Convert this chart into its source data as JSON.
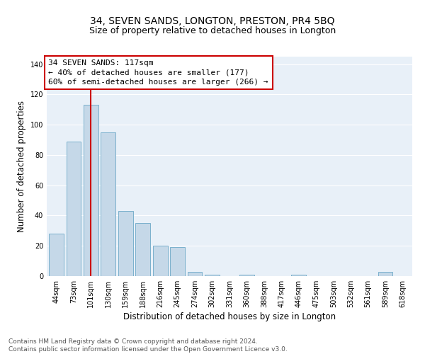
{
  "title": "34, SEVEN SANDS, LONGTON, PRESTON, PR4 5BQ",
  "subtitle": "Size of property relative to detached houses in Longton",
  "xlabel": "Distribution of detached houses by size in Longton",
  "ylabel": "Number of detached properties",
  "categories": [
    "44sqm",
    "73sqm",
    "101sqm",
    "130sqm",
    "159sqm",
    "188sqm",
    "216sqm",
    "245sqm",
    "274sqm",
    "302sqm",
    "331sqm",
    "360sqm",
    "388sqm",
    "417sqm",
    "446sqm",
    "475sqm",
    "503sqm",
    "532sqm",
    "561sqm",
    "589sqm",
    "618sqm"
  ],
  "values": [
    28,
    89,
    113,
    95,
    43,
    35,
    20,
    19,
    3,
    1,
    0,
    1,
    0,
    0,
    1,
    0,
    0,
    0,
    0,
    3,
    0
  ],
  "bar_color": "#c5d8e8",
  "bar_edge_color": "#7ab0cc",
  "vline_x": 2.0,
  "vline_color": "#cc0000",
  "annotation_text": "34 SEVEN SANDS: 117sqm\n← 40% of detached houses are smaller (177)\n60% of semi-detached houses are larger (266) →",
  "annotation_box_color": "#ffffff",
  "annotation_box_edge": "#cc0000",
  "ylim": [
    0,
    145
  ],
  "yticks": [
    0,
    20,
    40,
    60,
    80,
    100,
    120,
    140
  ],
  "bg_color": "#e8f0f8",
  "grid_color": "#ffffff",
  "footnote": "Contains HM Land Registry data © Crown copyright and database right 2024.\nContains public sector information licensed under the Open Government Licence v3.0.",
  "title_fontsize": 10,
  "xlabel_fontsize": 8.5,
  "ylabel_fontsize": 8.5,
  "tick_fontsize": 7,
  "annotation_fontsize": 8,
  "footnote_fontsize": 6.5
}
